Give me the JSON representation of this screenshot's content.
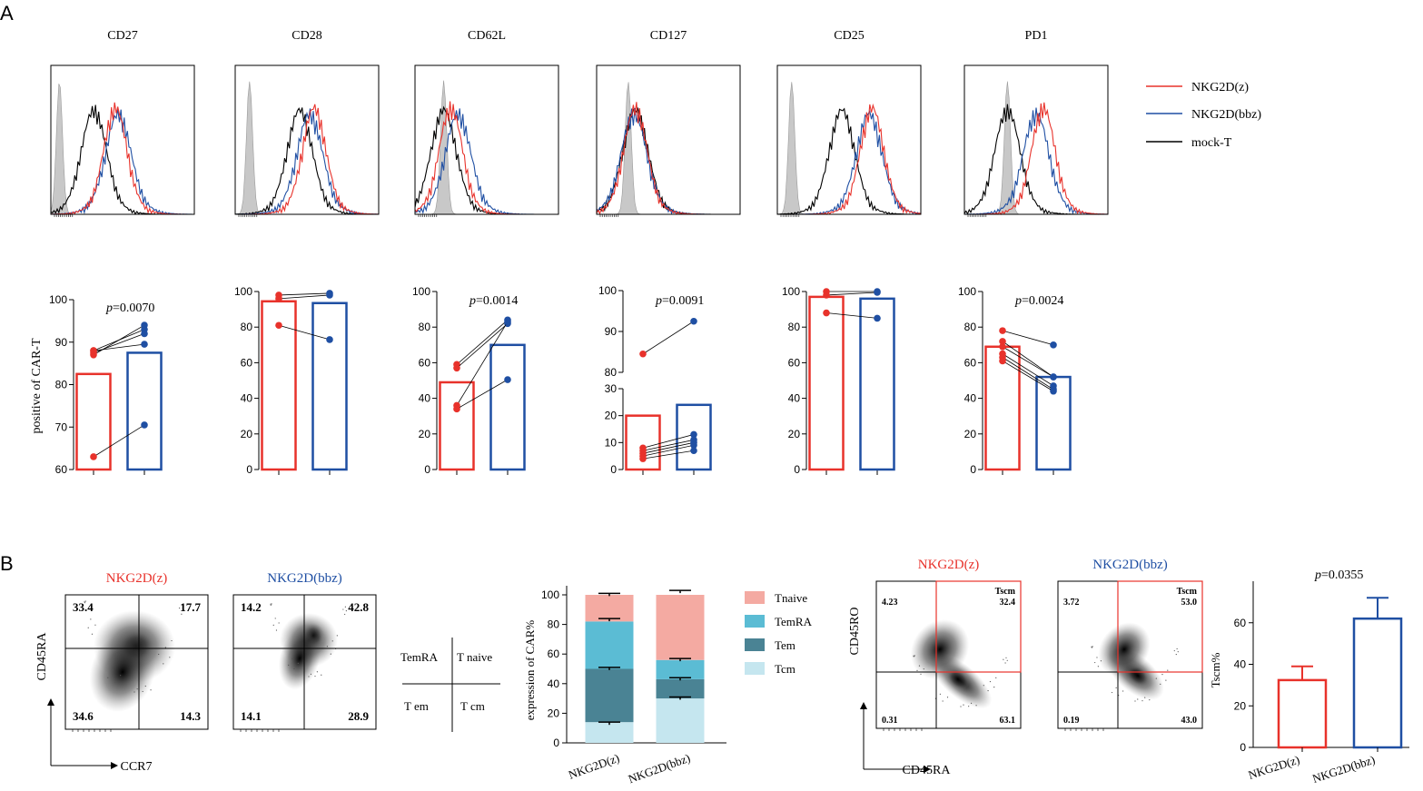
{
  "panels": {
    "a": "A",
    "b": "B"
  },
  "colors": {
    "red": "#e8322b",
    "blue": "#1f4fa3",
    "black": "#000000",
    "gray": "#c8c8c8",
    "tnaive": "#f4aaa2",
    "temra": "#5bbcd4",
    "tem": "#4a8394",
    "tcm": "#c5e6ef"
  },
  "legendA": [
    {
      "label": "NKG2D(z)",
      "color": "#e8322b"
    },
    {
      "label": "NKG2D(bbz)",
      "color": "#1f4fa3"
    },
    {
      "label": "mock-T",
      "color": "#000000"
    }
  ],
  "p_prefix": "p",
  "chart_data": [
    {
      "type": "histogram",
      "title": "CD27",
      "peaks": {
        "gray": 0.06,
        "mock": 0.3,
        "z": 0.45,
        "bbz": 0.47
      }
    },
    {
      "type": "histogram",
      "title": "CD28",
      "peaks": {
        "gray": 0.1,
        "mock": 0.45,
        "z": 0.55,
        "bbz": 0.52
      }
    },
    {
      "type": "histogram",
      "title": "CD62L",
      "peaks": {
        "gray": 0.2,
        "mock": 0.2,
        "z": 0.25,
        "bbz": 0.3
      }
    },
    {
      "type": "histogram",
      "title": "CD127",
      "peaks": {
        "gray": 0.22,
        "mock": 0.27,
        "z": 0.27,
        "bbz": 0.26
      }
    },
    {
      "type": "histogram",
      "title": "CD25",
      "peaks": {
        "gray": 0.1,
        "mock": 0.45,
        "z": 0.66,
        "bbz": 0.64
      }
    },
    {
      "type": "histogram",
      "title": "PD1",
      "peaks": {
        "gray": 0.3,
        "mock": 0.3,
        "z": 0.55,
        "bbz": 0.5
      }
    },
    {
      "type": "bar",
      "ylabel": "positive of CAR-T",
      "ylim": [
        60,
        100
      ],
      "yticks": [
        "60",
        "70",
        "80",
        "90",
        "100"
      ],
      "pvalue": "=0.0070",
      "bars": [
        82.5,
        87.5
      ],
      "pairs": [
        [
          87,
          94
        ],
        [
          88,
          93
        ],
        [
          87.5,
          92
        ],
        [
          88,
          89.5
        ],
        [
          63,
          70.5
        ]
      ]
    },
    {
      "type": "bar",
      "ylim": [
        0,
        100
      ],
      "yticks": [
        "0",
        "20",
        "40",
        "60",
        "80",
        "100"
      ],
      "pvalue": "",
      "bars": [
        94.5,
        93.5
      ],
      "pairs": [
        [
          98,
          99
        ],
        [
          96,
          98
        ],
        [
          81,
          73
        ]
      ]
    },
    {
      "type": "bar",
      "ylim": [
        0,
        100
      ],
      "yticks": [
        "0",
        "20",
        "40",
        "60",
        "80",
        "100"
      ],
      "pvalue": "=0.0014",
      "bars": [
        49,
        70
      ],
      "pairs": [
        [
          59,
          84
        ],
        [
          57,
          82
        ],
        [
          36,
          83
        ],
        [
          34,
          50.5
        ]
      ]
    },
    {
      "type": "bar",
      "broken_axis": true,
      "ylim_low": [
        0,
        30
      ],
      "ylim_high": [
        80,
        100
      ],
      "yticks": [
        "0",
        "10",
        "20",
        "30",
        "80",
        "90",
        "100"
      ],
      "pvalue": "=0.0091",
      "bars": [
        20,
        24
      ],
      "pairs": [
        [
          84.5,
          92.5
        ],
        [
          8,
          13
        ],
        [
          7,
          11
        ],
        [
          6,
          10
        ],
        [
          5,
          9
        ],
        [
          4,
          7
        ]
      ]
    },
    {
      "type": "bar",
      "ylim": [
        0,
        100
      ],
      "yticks": [
        "0",
        "20",
        "40",
        "60",
        "80",
        "100"
      ],
      "pvalue": "",
      "bars": [
        97,
        96
      ],
      "pairs": [
        [
          100,
          100
        ],
        [
          98,
          99.5
        ],
        [
          88,
          85
        ]
      ]
    },
    {
      "type": "bar",
      "ylim": [
        0,
        100
      ],
      "yticks": [
        "0",
        "20",
        "40",
        "60",
        "80",
        "100"
      ],
      "pvalue": "=0.0024",
      "bars": [
        69,
        52
      ],
      "pairs": [
        [
          78,
          70
        ],
        [
          72,
          52
        ],
        [
          69,
          52
        ],
        [
          65,
          47
        ],
        [
          63,
          45
        ],
        [
          61,
          44
        ]
      ]
    },
    {
      "type": "density",
      "title": "NKG2D(z)",
      "color": "#e8322b",
      "ylabel": "CD45RA",
      "xlabel": "CCR7",
      "quadrants": [
        "33.4",
        "17.7",
        "34.6",
        "14.3"
      ]
    },
    {
      "type": "density",
      "title": "NKG2D(bbz)",
      "color": "#1f4fa3",
      "quadrants": [
        "14.2",
        "42.8",
        "14.1",
        "28.9"
      ]
    },
    {
      "type": "stacked-bar",
      "ylabel": "expression of CAR%",
      "ylim": [
        0,
        100
      ],
      "yticks": [
        "0",
        "20",
        "40",
        "60",
        "80",
        "100"
      ],
      "categories": [
        "NKG2D(z)",
        "NKG2D(bbz)"
      ],
      "series": [
        {
          "name": "Tcm",
          "values": [
            14,
            30
          ]
        },
        {
          "name": "Tem",
          "values": [
            36,
            13
          ]
        },
        {
          "name": "TemRA",
          "values": [
            32,
            13
          ]
        },
        {
          "name": "Tnaive",
          "values": [
            18,
            44
          ]
        }
      ],
      "errors": [
        [
          14,
          51,
          84,
          101
        ],
        [
          31,
          44,
          57,
          103
        ]
      ],
      "legend": [
        "Tnaive",
        "TemRA",
        "Tem",
        "Tcm"
      ]
    },
    {
      "type": "density",
      "title": "NKG2D(z)",
      "color": "#e8322b",
      "ylabel": "CD45RO",
      "xlabel": "CD45RA",
      "gate": "Tscm",
      "quadrants": [
        "4.23",
        "32.4",
        "0.31",
        "63.1"
      ]
    },
    {
      "type": "density",
      "title": "NKG2D(bbz)",
      "color": "#1f4fa3",
      "gate": "Tscm",
      "quadrants": [
        "3.72",
        "53.0",
        "0.19",
        "43.0"
      ]
    },
    {
      "type": "bar",
      "ylabel": "Tscm%",
      "ylim": [
        0,
        80
      ],
      "yticks": [
        "0",
        "20",
        "40",
        "60"
      ],
      "pvalue": "=0.0355",
      "categories": [
        "NKG2D(z)",
        "NKG2D(bbz)"
      ],
      "values": [
        32.4,
        62
      ],
      "errors": [
        39,
        72
      ]
    }
  ],
  "quadrantLegend": {
    "tl": "TemRA",
    "tr": "T naive",
    "bl": "T em",
    "br": "T cm"
  }
}
